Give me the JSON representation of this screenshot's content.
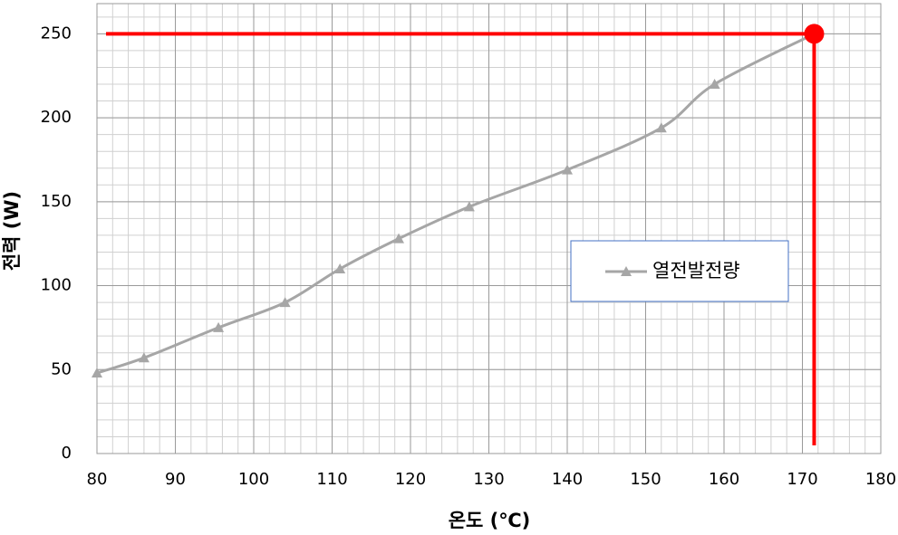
{
  "chart_data": {
    "type": "line",
    "x_label": "온도 (℃)",
    "y_label": "전력 (W)",
    "x": [
      80,
      86,
      95.5,
      104,
      111,
      118.5,
      127.5,
      140,
      152,
      158.8,
      171.5
    ],
    "series": [
      {
        "name": "열전발전량",
        "color": "#a6a6a6",
        "values": [
          48,
          57,
          75,
          90,
          110,
          128,
          147,
          169,
          194,
          220,
          250
        ]
      }
    ],
    "xlim": [
      80,
      180
    ],
    "xticks": [
      80,
      90,
      100,
      110,
      120,
      130,
      140,
      150,
      160,
      170,
      180
    ],
    "ylim": [
      0,
      268
    ],
    "yticks": [
      0,
      50,
      100,
      150,
      200,
      250
    ],
    "grid": true,
    "x_minor_step": 2,
    "y_minor_step": 10,
    "highlight": {
      "x": 171.5,
      "y": 250,
      "color": "#ff0000"
    }
  }
}
